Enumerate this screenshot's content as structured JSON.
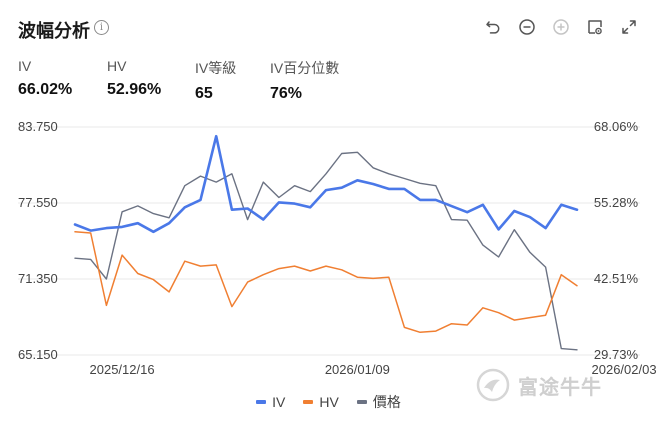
{
  "title": "波幅分析",
  "info_glyph": "i",
  "toolbar": {
    "icons": [
      "undo-icon",
      "zoom-out-icon",
      "zoom-in-icon",
      "settings-panel-icon",
      "expand-icon"
    ]
  },
  "metrics": [
    {
      "label": "IV",
      "value": "66.02%"
    },
    {
      "label": "HV",
      "value": "52.96%"
    },
    {
      "label": "IV等級",
      "value": "65"
    },
    {
      "label": "IV百分位數",
      "value": "76%"
    }
  ],
  "colors": {
    "iv": "#4a78e8",
    "hv": "#f07f32",
    "price": "#6b7283",
    "grid": "#e8e8e8"
  },
  "chart_data": {
    "type": "line",
    "left_axis": {
      "ticks": [
        "83.750",
        "77.550",
        "71.350",
        "65.150"
      ],
      "min": 65.15,
      "max": 83.75
    },
    "right_axis": {
      "ticks": [
        "68.06%",
        "55.28%",
        "42.51%",
        "29.73%"
      ],
      "min": 29.73,
      "max": 68.06
    },
    "x_ticks": [
      {
        "label": "2025/12/16",
        "index": 3
      },
      {
        "label": "2026/01/09",
        "index": 18
      },
      {
        "label": "2026/02/03",
        "index": 35
      }
    ],
    "grid": true,
    "legend_position": "bottom-center",
    "series": [
      {
        "name": "IV",
        "axis": "left",
        "color": "#4a78e8",
        "values": [
          75.8,
          75.3,
          75.5,
          75.6,
          75.9,
          75.2,
          75.9,
          77.2,
          77.8,
          83.0,
          77.0,
          77.1,
          76.2,
          77.6,
          77.5,
          77.2,
          78.6,
          78.8,
          79.4,
          79.1,
          78.7,
          78.7,
          77.8,
          77.8,
          77.3,
          76.8,
          77.4,
          75.4,
          76.9,
          76.4,
          75.5,
          77.4,
          77.0
        ]
      },
      {
        "name": "HV",
        "axis": "left",
        "color": "#f07f32",
        "values": [
          75.2,
          75.1,
          69.2,
          73.3,
          71.8,
          71.3,
          70.3,
          72.8,
          72.4,
          72.5,
          69.1,
          71.1,
          71.7,
          72.2,
          72.4,
          72.0,
          72.4,
          72.1,
          71.5,
          71.4,
          71.5,
          67.4,
          67.0,
          67.1,
          67.7,
          67.6,
          69.0,
          68.6,
          68.0,
          68.2,
          68.4,
          71.7,
          70.8
        ]
      },
      {
        "name": "價格",
        "axis": "right",
        "color": "#6b7283",
        "values": [
          46.0,
          45.8,
          42.5,
          53.8,
          54.8,
          53.5,
          52.8,
          58.2,
          59.8,
          58.8,
          60.2,
          52.5,
          58.8,
          56.2,
          58.2,
          57.2,
          60.2,
          63.6,
          63.8,
          61.2,
          60.2,
          59.4,
          58.6,
          58.2,
          52.5,
          52.4,
          48.2,
          46.2,
          50.8,
          47.0,
          44.5,
          30.8,
          30.6
        ]
      }
    ]
  },
  "watermark": "富途牛牛"
}
